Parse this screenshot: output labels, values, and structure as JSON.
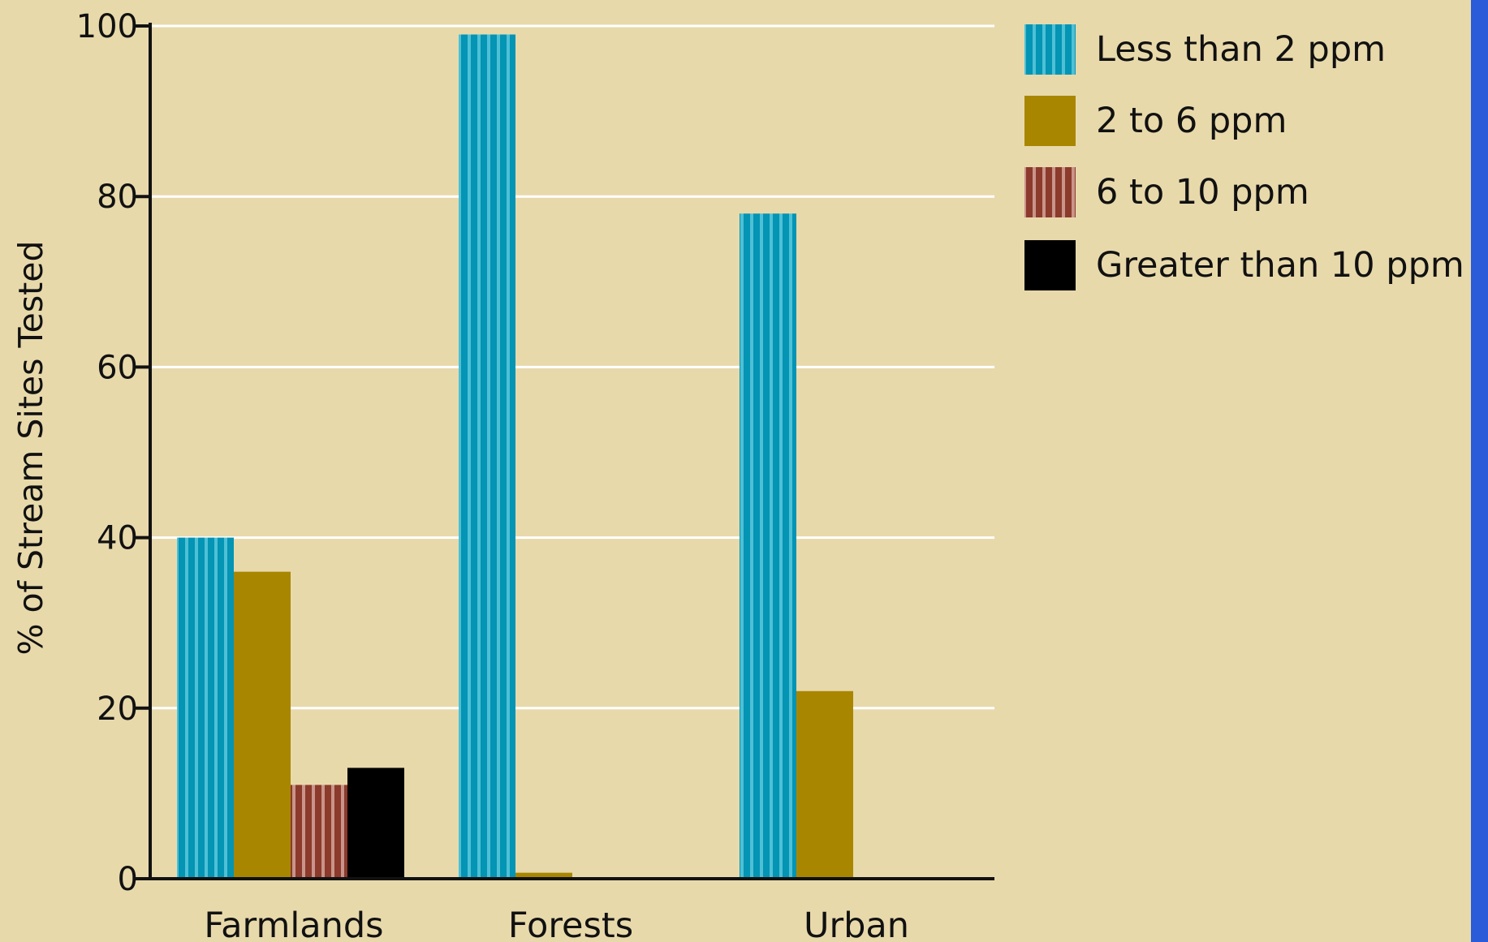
{
  "colors": {
    "background": "#e8d9ab",
    "gridline": "#ffffff",
    "axis": "#111111",
    "side_border": "#2a5bd8"
  },
  "chart_data": {
    "type": "bar",
    "title": "",
    "xlabel": "",
    "ylabel": "% of Stream Sites Tested",
    "ylim": [
      0,
      100
    ],
    "yticks": [
      0,
      20,
      40,
      60,
      80,
      100
    ],
    "grid": true,
    "legend_position": "top-right",
    "categories": [
      "Farmlands",
      "Forests",
      "Urban"
    ],
    "series": [
      {
        "name": "Less than 2 ppm",
        "color": "#0494b4",
        "pattern": "vertical-stripes",
        "stripe_color": "#4ec0d6",
        "values": [
          40,
          99,
          78
        ]
      },
      {
        "name": "2 to 6 ppm",
        "color": "#a88600",
        "pattern": "solid",
        "values": [
          36,
          0.7,
          22
        ]
      },
      {
        "name": "6 to 10 ppm",
        "color": "#8b3a2b",
        "pattern": "vertical-stripes",
        "stripe_color": "#c9948a",
        "values": [
          11,
          0,
          0
        ]
      },
      {
        "name": "Greater than 10 ppm",
        "color": "#000000",
        "pattern": "solid",
        "values": [
          13,
          0,
          0
        ]
      }
    ]
  }
}
